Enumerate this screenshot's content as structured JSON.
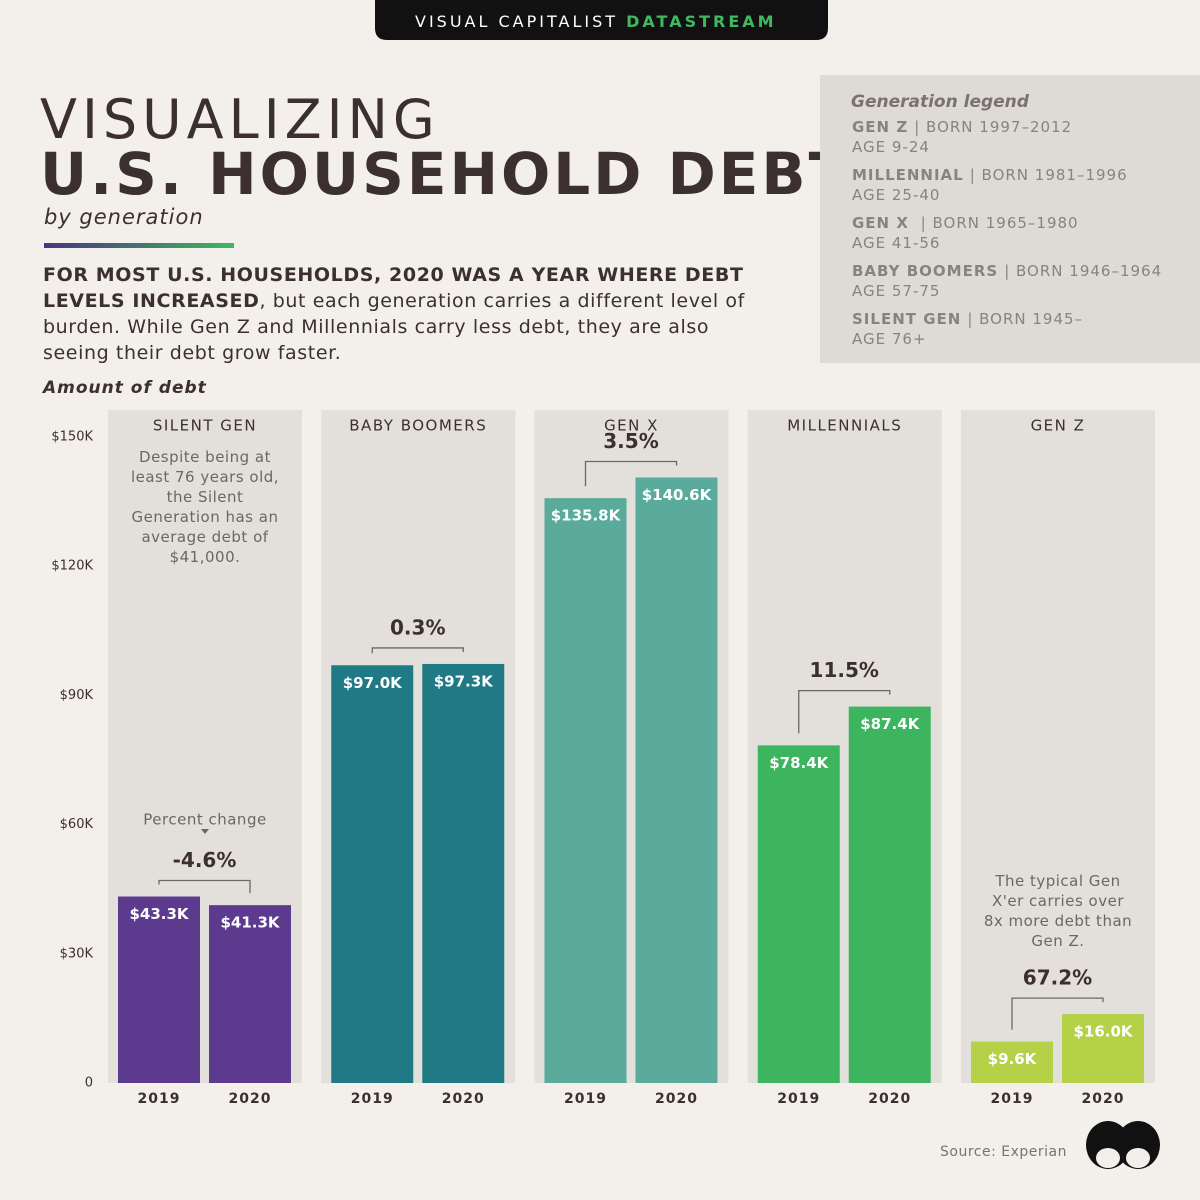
{
  "chart_data": {
    "type": "bar",
    "brand": "VISUAL CAPITALIST",
    "brand_accent": "DATASTREAM",
    "title_line1": "VISUALIZING",
    "title_line2": "U.S. HOUSEHOLD DEBT",
    "subtitle": "by generation",
    "intro_bold": "FOR MOST U.S. HOUSEHOLDS, 2020 WAS A YEAR WHERE DEBT LEVELS INCREASED",
    "intro_text": ", but each generation carries a different level of burden. While Gen Z and Millennials carry less debt, they are also seeing their debt grow faster.",
    "y_label": "Amount of debt",
    "ylim": [
      0,
      150000
    ],
    "yticks": [
      0,
      {
        "value": 30000,
        "label": "$30K"
      },
      {
        "value": 60000,
        "label": "$60K"
      },
      {
        "value": 90000,
        "label": "$90K"
      },
      {
        "value": 120000,
        "label": "$120K"
      },
      {
        "value": 150000,
        "label": "$150K"
      }
    ],
    "categories": [
      "2019",
      "2020"
    ],
    "change_note": "Percent change",
    "groups": [
      {
        "name": "SILENT GEN",
        "color": "#5c3b8f",
        "values": [
          43300,
          41300
        ],
        "value_labels": [
          "$43.3K",
          "$41.3K"
        ],
        "change": "-4.6%",
        "note": "Despite being at least 76 years old, the Silent Generation has an average debt of $41,000."
      },
      {
        "name": "BABY BOOMERS",
        "color": "#1f7a86",
        "values": [
          97000,
          97300
        ],
        "value_labels": [
          "$97.0K",
          "$97.3K"
        ],
        "change": "0.3%"
      },
      {
        "name": "GEN X",
        "color": "#5aab9b",
        "values": [
          135800,
          140600
        ],
        "value_labels": [
          "$135.8K",
          "$140.6K"
        ],
        "change": "3.5%"
      },
      {
        "name": "MILLENNIALS",
        "color": "#3db55e",
        "values": [
          78400,
          87400
        ],
        "value_labels": [
          "$78.4K",
          "$87.4K"
        ],
        "change": "11.5%"
      },
      {
        "name": "GEN Z",
        "color": "#b5d148",
        "values": [
          9600,
          16000
        ],
        "value_labels": [
          "$9.6K",
          "$16.0K"
        ],
        "change": "67.2%",
        "note": "The typical Gen X'er carries over 8x more debt than Gen Z."
      }
    ],
    "legend": {
      "title": "Generation legend",
      "entries": [
        {
          "name": "GEN Z",
          "born": "| BORN 1997–2012",
          "age": "AGE 9-24"
        },
        {
          "name": "MILLENNIAL",
          "born": "| BORN 1981–1996",
          "age": "AGE 25-40"
        },
        {
          "name": "GEN X",
          "born": " | BORN 1965–1980",
          "age": "AGE 41-56"
        },
        {
          "name": "BABY BOOMERS",
          "born": "| BORN 1946–1964",
          "age": "AGE 57-75"
        },
        {
          "name": "SILENT GEN",
          "born": "| BORN 1945–",
          "age": "AGE 76+"
        }
      ]
    },
    "source": "Source: Experian"
  }
}
